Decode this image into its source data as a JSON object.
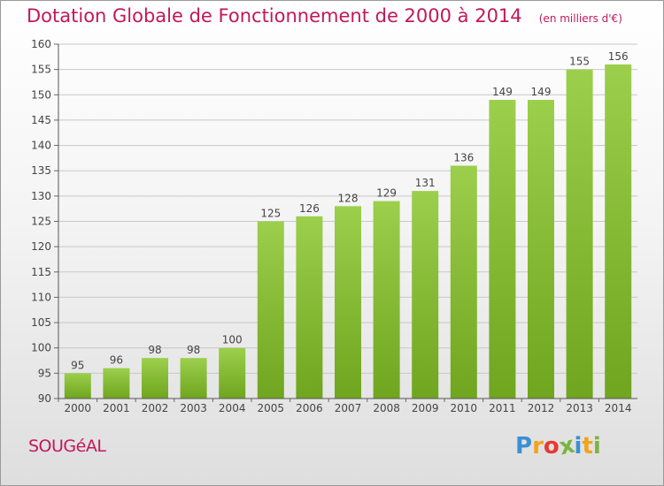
{
  "chart_data": {
    "type": "bar",
    "title": "Dotation Globale de Fonctionnement de 2000 à 2014",
    "unit": "(en milliers d'€)",
    "categories": [
      "2000",
      "2001",
      "2002",
      "2003",
      "2004",
      "2005",
      "2006",
      "2007",
      "2008",
      "2009",
      "2010",
      "2011",
      "2012",
      "2013",
      "2014"
    ],
    "values": [
      95,
      96,
      98,
      98,
      100,
      125,
      126,
      128,
      129,
      131,
      136,
      149,
      149,
      155,
      156
    ],
    "ylim": [
      90,
      160
    ],
    "yticks": [
      90,
      95,
      100,
      105,
      110,
      115,
      120,
      125,
      130,
      135,
      140,
      145,
      150,
      155,
      160
    ],
    "grid": true,
    "colors": {
      "bar_top": "#9ccf4c",
      "bar_bottom": "#6fa51f",
      "title": "#c2185b",
      "label": "#444444"
    }
  },
  "commune": "SOUGéAL",
  "brand": {
    "text": "Proxiti",
    "letters": [
      "P",
      "r",
      "o",
      "x",
      "i",
      "t",
      "i"
    ],
    "colors": [
      "#3b8fd6",
      "#f2a31b",
      "#e53935",
      "#7cb342",
      "#3b8fd6",
      "#f2a31b",
      "#7cb342"
    ]
  }
}
